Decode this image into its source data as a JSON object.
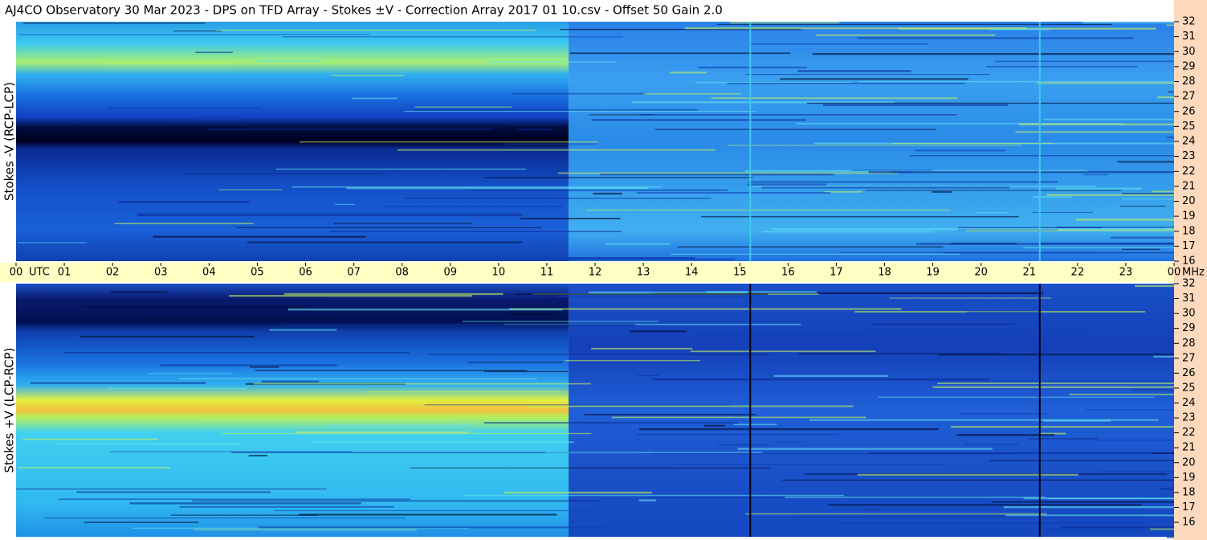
{
  "header": {
    "title": "AJ4CO Observatory  30 Mar 2023  -  DPS on TFD Array  -  Stokes ±V  -  Correction Array 2017 01 10.csv  -  Offset 50  Gain 2.0"
  },
  "chart_data": [
    {
      "type": "heatmap",
      "y_label": "Stokes -V (RCP-LCP)",
      "y_unit": "MHz",
      "x_label": "UTC",
      "xlim": [
        0,
        24
      ],
      "xticks": [
        {
          "value": 0,
          "label": "00"
        },
        {
          "value": 1,
          "label": "01"
        },
        {
          "value": 2,
          "label": "02"
        },
        {
          "value": 3,
          "label": "03"
        },
        {
          "value": 4,
          "label": "04"
        },
        {
          "value": 5,
          "label": "05"
        },
        {
          "value": 6,
          "label": "06"
        },
        {
          "value": 7,
          "label": "07"
        },
        {
          "value": 8,
          "label": "08"
        },
        {
          "value": 9,
          "label": "09"
        },
        10,
        11,
        12,
        13,
        14,
        15,
        16,
        17,
        18,
        19,
        20,
        21,
        22,
        23,
        {
          "value": 24,
          "label": "00"
        }
      ],
      "ylim": [
        16,
        32
      ],
      "yticks": [
        16,
        17,
        18,
        19,
        20,
        21,
        22,
        23,
        24,
        25,
        26,
        27,
        28,
        29,
        30,
        31,
        32
      ]
    },
    {
      "type": "heatmap",
      "y_label": "Stokes +V (LCP-RCP)",
      "ylim": [
        16,
        32
      ],
      "yticks": [
        16,
        17,
        18,
        19,
        20,
        21,
        22,
        23,
        24,
        25,
        26,
        27,
        28,
        29,
        30,
        31,
        32
      ]
    }
  ]
}
